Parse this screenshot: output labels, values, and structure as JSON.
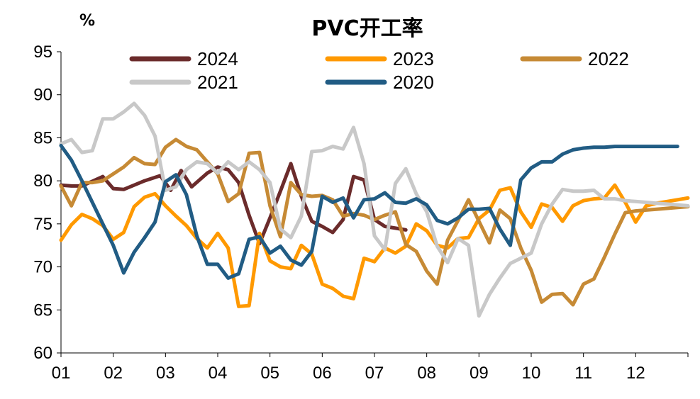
{
  "chart_data": {
    "type": "line",
    "title": "PVC开工率",
    "ylabel": "%",
    "xlabel": "",
    "ylim": [
      60,
      95
    ],
    "y_ticks": [
      "60",
      "65",
      "70",
      "75",
      "80",
      "85",
      "90",
      "95"
    ],
    "x_ticks": [
      "01",
      "02",
      "03",
      "04",
      "05",
      "06",
      "07",
      "08",
      "09",
      "10",
      "11",
      "12"
    ],
    "x_range": [
      1,
      13
    ],
    "grid": false,
    "legend_position": "top",
    "series": [
      {
        "name": "2024",
        "color": "#6b2b2b",
        "x": [
          1.0,
          1.2,
          1.4,
          1.8,
          2.0,
          2.2,
          2.6,
          2.9,
          3.1,
          3.3,
          3.5,
          3.8,
          4.0,
          4.2,
          4.4,
          4.6,
          4.8,
          5.0,
          5.2,
          5.4,
          5.6,
          5.8,
          6.0,
          6.2,
          6.4,
          6.6,
          6.8,
          7.0,
          7.2,
          7.4,
          7.6
        ],
        "y": [
          79.5,
          79.4,
          79.4,
          80.5,
          79.1,
          79.0,
          80.0,
          80.6,
          78.9,
          81.2,
          79.3,
          80.9,
          81.6,
          81.3,
          79.8,
          76.0,
          72.7,
          75.7,
          78.8,
          82.0,
          78.2,
          75.3,
          74.7,
          74.0,
          75.5,
          80.5,
          80.1,
          75.5,
          74.7,
          74.5,
          74.3
        ]
      },
      {
        "name": "2023",
        "color": "#ff9900",
        "x": [
          1.0,
          1.2,
          1.4,
          1.6,
          1.8,
          2.0,
          2.2,
          2.4,
          2.6,
          2.8,
          3.0,
          3.2,
          3.4,
          3.6,
          3.8,
          4.0,
          4.2,
          4.4,
          4.6,
          4.8,
          5.0,
          5.2,
          5.4,
          5.6,
          5.8,
          6.0,
          6.2,
          6.4,
          6.6,
          6.8,
          7.0,
          7.2,
          7.4,
          7.6,
          7.8,
          8.0,
          8.2,
          8.4,
          8.6,
          8.8,
          9.0,
          9.2,
          9.4,
          9.6,
          9.8,
          10.0,
          10.2,
          10.4,
          10.6,
          10.8,
          11.0,
          11.2,
          11.4,
          11.6,
          11.8,
          12.0,
          12.2,
          12.4,
          12.6,
          12.8,
          13.0
        ],
        "y": [
          73.1,
          74.9,
          76.1,
          75.6,
          74.8,
          73.2,
          74.0,
          77.0,
          78.1,
          78.5,
          77.1,
          75.9,
          74.8,
          73.3,
          72.2,
          73.9,
          72.2,
          65.4,
          65.5,
          73.9,
          70.7,
          70.0,
          69.8,
          72.5,
          71.5,
          68.0,
          67.5,
          66.6,
          66.3,
          71.0,
          70.6,
          72.2,
          71.6,
          72.4,
          75.0,
          74.2,
          72.5,
          72.2,
          73.3,
          73.4,
          75.6,
          76.6,
          78.9,
          79.2,
          76.4,
          74.6,
          77.3,
          76.9,
          75.3,
          77.1,
          77.7,
          77.9,
          78.0,
          79.5,
          77.5,
          75.2,
          77.1,
          77.4,
          77.6,
          77.8,
          78.0
        ]
      },
      {
        "name": "2022",
        "color": "#c68a35",
        "x": [
          1.0,
          1.2,
          1.4,
          1.6,
          1.8,
          2.0,
          2.2,
          2.4,
          2.6,
          2.8,
          3.0,
          3.2,
          3.4,
          3.6,
          3.8,
          4.0,
          4.2,
          4.4,
          4.6,
          4.8,
          5.0,
          5.2,
          5.4,
          5.6,
          5.8,
          6.0,
          6.2,
          6.4,
          6.6,
          6.8,
          7.0,
          7.2,
          7.4,
          7.6,
          7.8,
          8.0,
          8.2,
          8.4,
          8.6,
          8.8,
          9.0,
          9.2,
          9.4,
          9.6,
          9.8,
          10.0,
          10.2,
          10.4,
          10.6,
          10.8,
          11.0,
          11.2,
          11.4,
          11.6,
          11.8,
          12.0,
          12.2,
          12.4,
          12.6,
          12.8,
          13.0
        ],
        "y": [
          79.4,
          77.1,
          79.8,
          79.8,
          80.0,
          80.8,
          81.6,
          82.7,
          82.0,
          81.9,
          83.9,
          84.8,
          84.0,
          83.6,
          82.2,
          80.8,
          77.6,
          78.5,
          83.2,
          83.3,
          77.1,
          73.5,
          79.8,
          78.4,
          78.2,
          78.3,
          77.8,
          75.9,
          76.2,
          76.0,
          75.5,
          76.0,
          76.4,
          72.6,
          71.8,
          69.5,
          68.0,
          73.1,
          75.4,
          77.8,
          75.3,
          72.8,
          76.6,
          75.6,
          72.2,
          69.6,
          65.9,
          66.8,
          66.9,
          65.6,
          68.0,
          68.6,
          71.1,
          73.8,
          76.3,
          76.5,
          76.6,
          76.7,
          76.8,
          76.9,
          77.0
        ]
      },
      {
        "name": "2021",
        "color": "#c8c8c8",
        "x": [
          1.0,
          1.2,
          1.4,
          1.6,
          1.8,
          2.0,
          2.2,
          2.4,
          2.6,
          2.8,
          3.0,
          3.2,
          3.4,
          3.6,
          3.8,
          4.0,
          4.2,
          4.4,
          4.6,
          4.8,
          5.0,
          5.2,
          5.4,
          5.6,
          5.8,
          6.0,
          6.2,
          6.4,
          6.6,
          6.8,
          7.0,
          7.2,
          7.4,
          7.6,
          7.8,
          8.0,
          8.2,
          8.4,
          8.6,
          8.8,
          9.0,
          9.2,
          9.4,
          9.6,
          9.8,
          10.0,
          10.2,
          10.4,
          10.6,
          10.8,
          11.0,
          11.2,
          11.4,
          11.6,
          11.8,
          12.0,
          12.2,
          12.4,
          12.6,
          12.8,
          13.0
        ],
        "y": [
          84.3,
          84.8,
          83.3,
          83.5,
          87.2,
          87.2,
          88.0,
          89.0,
          87.6,
          85.2,
          78.9,
          79.3,
          81.3,
          82.2,
          82.0,
          80.9,
          82.2,
          81.3,
          82.2,
          81.3,
          79.8,
          74.4,
          73.4,
          75.9,
          83.4,
          83.5,
          84.0,
          83.7,
          86.2,
          82.0,
          73.6,
          72.0,
          79.7,
          81.4,
          78.5,
          76.4,
          72.4,
          70.5,
          73.3,
          72.5,
          64.3,
          66.8,
          68.7,
          70.4,
          71.0,
          71.6,
          75.0,
          77.3,
          79.0,
          78.8,
          78.8,
          78.9,
          77.9,
          77.9,
          77.7,
          77.6,
          77.5,
          77.4,
          77.3,
          77.2,
          77.1
        ]
      },
      {
        "name": "2020",
        "color": "#215c84",
        "x": [
          1.0,
          1.2,
          1.4,
          1.6,
          1.8,
          2.0,
          2.2,
          2.4,
          2.6,
          2.8,
          3.0,
          3.2,
          3.4,
          3.6,
          3.8,
          4.0,
          4.2,
          4.4,
          4.6,
          4.8,
          5.0,
          5.2,
          5.4,
          5.6,
          5.8,
          6.0,
          6.2,
          6.4,
          6.6,
          6.8,
          7.0,
          7.2,
          7.4,
          7.6,
          7.8,
          8.0,
          8.2,
          8.4,
          8.6,
          8.8,
          9.0,
          9.2,
          9.4,
          9.6,
          9.8,
          10.0,
          10.2,
          10.4,
          10.6,
          10.8,
          11.0,
          11.2,
          11.4,
          11.6,
          11.8,
          12.0,
          12.2,
          12.4,
          12.6,
          12.8
        ],
        "y": [
          84.1,
          82.4,
          80.0,
          77.5,
          75.0,
          72.5,
          69.3,
          71.7,
          73.4,
          75.2,
          79.9,
          80.7,
          78.4,
          73.6,
          70.3,
          70.3,
          68.7,
          69.2,
          73.2,
          73.5,
          71.6,
          72.4,
          70.8,
          70.2,
          71.8,
          78.2,
          77.5,
          78.0,
          75.7,
          77.8,
          77.9,
          78.6,
          77.5,
          77.4,
          77.9,
          77.2,
          75.4,
          75.0,
          75.7,
          76.7,
          76.7,
          76.8,
          74.4,
          72.5,
          80.1,
          81.5,
          82.2,
          82.2,
          83.1,
          83.6,
          83.8,
          83.9,
          83.9,
          84.0,
          84.0,
          84.0,
          84.0,
          84.0,
          84.0,
          84.0
        ]
      }
    ]
  }
}
